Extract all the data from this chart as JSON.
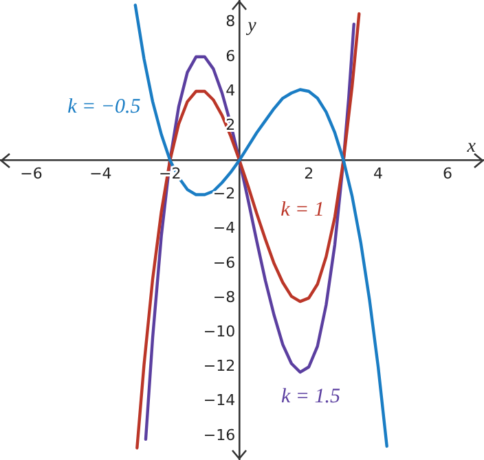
{
  "chart_data": {
    "type": "line",
    "xlabel": "x",
    "ylabel": "y",
    "xlim": [
      -6.9,
      7.05
    ],
    "ylim": [
      -17.4,
      9.3
    ],
    "xticks": [
      -6,
      -4,
      -2,
      2,
      4,
      6
    ],
    "yticks": [
      -16,
      -14,
      -12,
      -10,
      -8,
      -6,
      -4,
      -2,
      2,
      4,
      6,
      8
    ],
    "marker": "none",
    "line_style": "solid",
    "series": [
      {
        "name": "k = −0.5",
        "color": "#1a7dc4",
        "x": [
          -3,
          -2.75,
          -2.5,
          -2.25,
          -2,
          -1.75,
          -1.5,
          -1.25,
          -1,
          -0.75,
          -0.5,
          -0.25,
          0,
          0.25,
          0.5,
          0.75,
          1,
          1.25,
          1.5,
          1.75,
          2,
          2.25,
          2.5,
          2.75,
          3,
          3.25,
          3.5,
          3.75,
          4,
          4.25
        ],
        "values": [
          9,
          5.9,
          3.4,
          1.5,
          0,
          -1.0,
          -1.7,
          -2.0,
          -2,
          -1.8,
          -1.3,
          -0.7,
          0,
          0.8,
          1.6,
          2.3,
          3,
          3.6,
          3.9,
          4.1,
          4,
          3.6,
          2.8,
          1.6,
          0,
          -2.1,
          -4.8,
          -8.1,
          -12,
          -16.6
        ]
      },
      {
        "name": "k = 1",
        "color": "#bb3628",
        "x": [
          -2.95,
          -2.75,
          -2.5,
          -2.25,
          -2,
          -1.75,
          -1.5,
          -1.25,
          -1,
          -0.75,
          -0.5,
          -0.25,
          0,
          0.25,
          0.5,
          0.75,
          1,
          1.25,
          1.5,
          1.75,
          2,
          2.25,
          2.5,
          2.75,
          3,
          3.25,
          3.45
        ],
        "values": [
          -16.7,
          -11.9,
          -6.9,
          -3,
          0,
          2.1,
          3.4,
          4,
          4,
          3.5,
          2.6,
          1.4,
          0,
          -1.5,
          -3.1,
          -4.6,
          -6,
          -7.1,
          -7.9,
          -8.2,
          -8,
          -7.2,
          -5.6,
          -3.3,
          0,
          4.3,
          8.5
        ]
      },
      {
        "name": "k = 1.5",
        "color": "#5b3fa0",
        "x": [
          -2.7,
          -2.5,
          -2.25,
          -2,
          -1.75,
          -1.5,
          -1.25,
          -1,
          -0.75,
          -0.5,
          -0.25,
          0,
          0.25,
          0.5,
          0.75,
          1,
          1.25,
          1.5,
          1.75,
          2,
          2.25,
          2.5,
          2.75,
          3,
          3.15,
          3.3
        ],
        "values": [
          -16.2,
          -10.3,
          -4.4,
          0,
          3.1,
          5.1,
          6.0,
          6,
          5.3,
          3.9,
          2.1,
          0,
          -2.3,
          -4.7,
          -7.0,
          -9,
          -10.7,
          -11.8,
          -12.3,
          -12,
          -10.8,
          -8.4,
          -4.9,
          0,
          3.6,
          7.9
        ]
      }
    ]
  }
}
